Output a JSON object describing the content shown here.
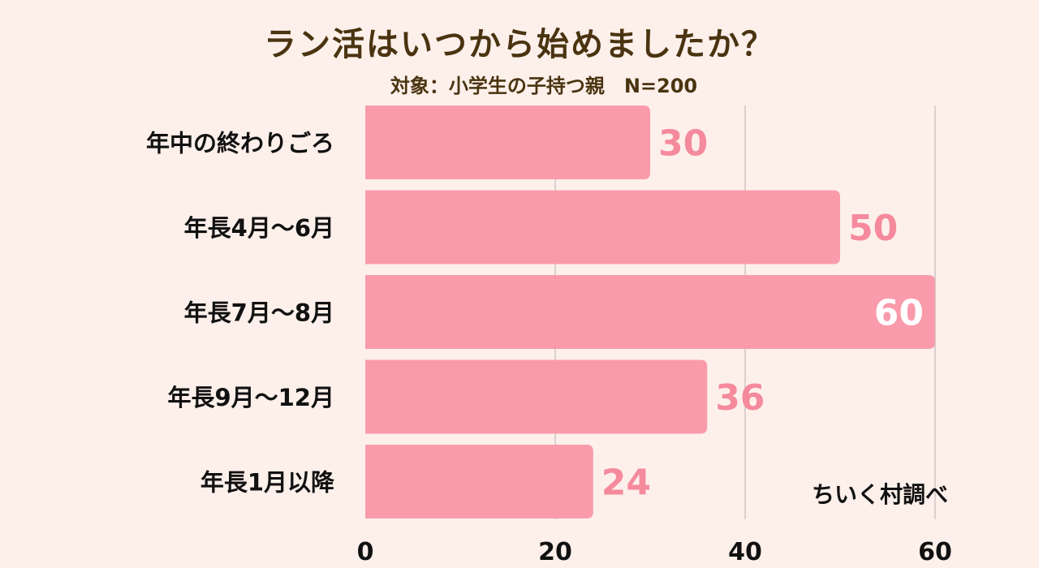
{
  "title": "ラン活はいつから始めましたか？",
  "subtitle": "対象：小学生の子持つ親　N=200",
  "credit": "ちいく村調べ",
  "colors": {
    "background": "#fdf0eb",
    "bar": "#f99bab",
    "value_label": "#f58a9c",
    "highlight_label": "#ffffff",
    "grid": "#cfc6c3",
    "text": "#111111",
    "title": "#4a3410"
  },
  "chart_data": {
    "type": "bar",
    "orientation": "horizontal",
    "categories": [
      "年中の終わりごろ",
      "年長4月～6月",
      "年長7月～8月",
      "年長9月～12月",
      "年長1月以降"
    ],
    "values": [
      30,
      50,
      60,
      36,
      24
    ],
    "xlim": [
      0,
      60
    ],
    "xticks": [
      0,
      20,
      40,
      60
    ],
    "highlight_index": 2,
    "grid": true
  }
}
